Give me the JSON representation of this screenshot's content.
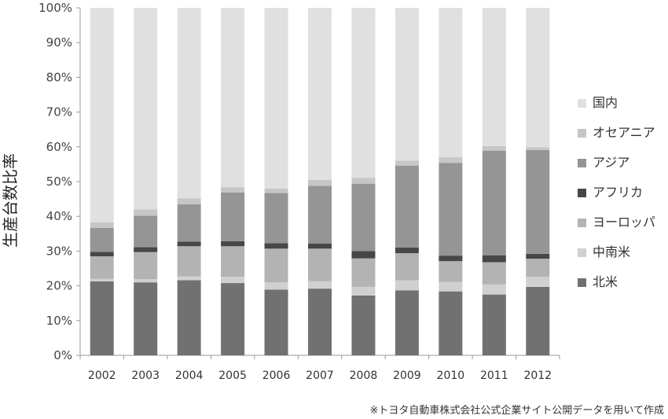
{
  "chart_data": {
    "type": "bar",
    "stacked": true,
    "ylabel": "生産台数比率",
    "xlabel": "",
    "ylim": [
      0,
      100
    ],
    "y_ticks": [
      "0%",
      "10%",
      "20%",
      "30%",
      "40%",
      "50%",
      "60%",
      "70%",
      "80%",
      "90%",
      "100%"
    ],
    "categories": [
      "2002",
      "2003",
      "2004",
      "2005",
      "2006",
      "2007",
      "2008",
      "2009",
      "2010",
      "2011",
      "2012"
    ],
    "series": [
      {
        "name": "北米",
        "color": "#717171",
        "values": [
          21.3,
          21.0,
          21.6,
          20.8,
          18.9,
          19.2,
          17.2,
          18.7,
          18.4,
          17.5,
          19.7
        ]
      },
      {
        "name": "中南米",
        "color": "#d0d0d0",
        "values": [
          0.7,
          0.9,
          1.1,
          1.8,
          2.1,
          2.1,
          2.5,
          2.9,
          2.7,
          2.9,
          2.9
        ]
      },
      {
        "name": "ヨーロッパ",
        "color": "#b3b3b3",
        "values": [
          6.5,
          7.8,
          8.7,
          8.8,
          9.7,
          9.4,
          8.2,
          7.8,
          6.0,
          6.4,
          5.2
        ]
      },
      {
        "name": "アフリカ",
        "color": "#474747",
        "values": [
          1.3,
          1.4,
          1.3,
          1.4,
          1.6,
          1.5,
          2.1,
          1.6,
          1.6,
          2.0,
          1.4
        ]
      },
      {
        "name": "アジア",
        "color": "#959595",
        "values": [
          6.9,
          9.1,
          10.8,
          14.1,
          14.4,
          16.6,
          19.4,
          23.6,
          26.7,
          30.1,
          29.9
        ]
      },
      {
        "name": "オセアニア",
        "color": "#c6c6c6",
        "values": [
          1.6,
          1.8,
          1.7,
          1.5,
          1.3,
          1.7,
          1.7,
          1.4,
          1.6,
          1.3,
          0.8
        ]
      },
      {
        "name": "国内",
        "color": "#e0e0e0",
        "values": [
          61.7,
          58.0,
          54.8,
          51.6,
          52.0,
          49.5,
          48.9,
          44.0,
          43.0,
          39.8,
          40.1
        ]
      }
    ],
    "legend_order": [
      "国内",
      "オセアニア",
      "アジア",
      "アフリカ",
      "ヨーロッパ",
      "中南米",
      "北米"
    ],
    "legend_position": "right",
    "grid": false
  },
  "footnote": "※トヨタ自動車株式会社公式企業サイト公開データを用いて作成"
}
